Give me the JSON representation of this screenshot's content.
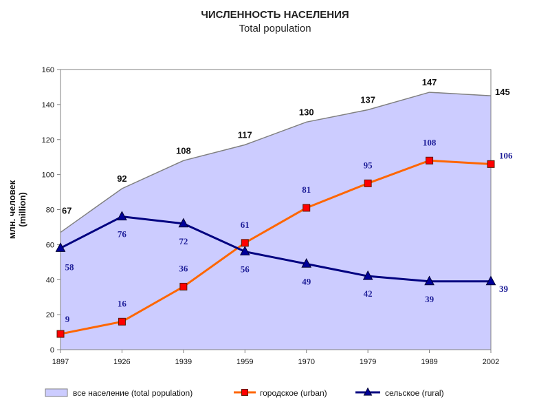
{
  "chart_data": {
    "type": "line",
    "title": "ЧИСЛЕННОСТЬ НАСЕЛЕНИЯ",
    "subtitle": "Total population",
    "ylabel_lines": [
      "млн. человек",
      "(million)"
    ],
    "xlabel": "",
    "categories": [
      "1897",
      "1926",
      "1939",
      "1959",
      "1970",
      "1979",
      "1989",
      "2002"
    ],
    "ylim": [
      0,
      160
    ],
    "yticks": [
      0,
      20,
      40,
      60,
      80,
      100,
      120,
      140,
      160
    ],
    "grid": false,
    "legend_position": "bottom",
    "series": [
      {
        "name": "все население    (total population)",
        "kind": "area",
        "color": "#ccccff",
        "edge_color": "#808080",
        "values": [
          67,
          92,
          108,
          117,
          130,
          137,
          147,
          145
        ]
      },
      {
        "name": "городское    (urban)",
        "kind": "line",
        "marker": "square",
        "color": "#ff6600",
        "marker_color": "#ff0000",
        "values": [
          9,
          16,
          36,
          61,
          81,
          95,
          108,
          106
        ]
      },
      {
        "name": "сельское  (rural)",
        "kind": "line",
        "marker": "triangle",
        "color": "#000080",
        "marker_color": "#000099",
        "values": [
          58,
          76,
          72,
          56,
          49,
          42,
          39,
          39
        ]
      }
    ]
  }
}
